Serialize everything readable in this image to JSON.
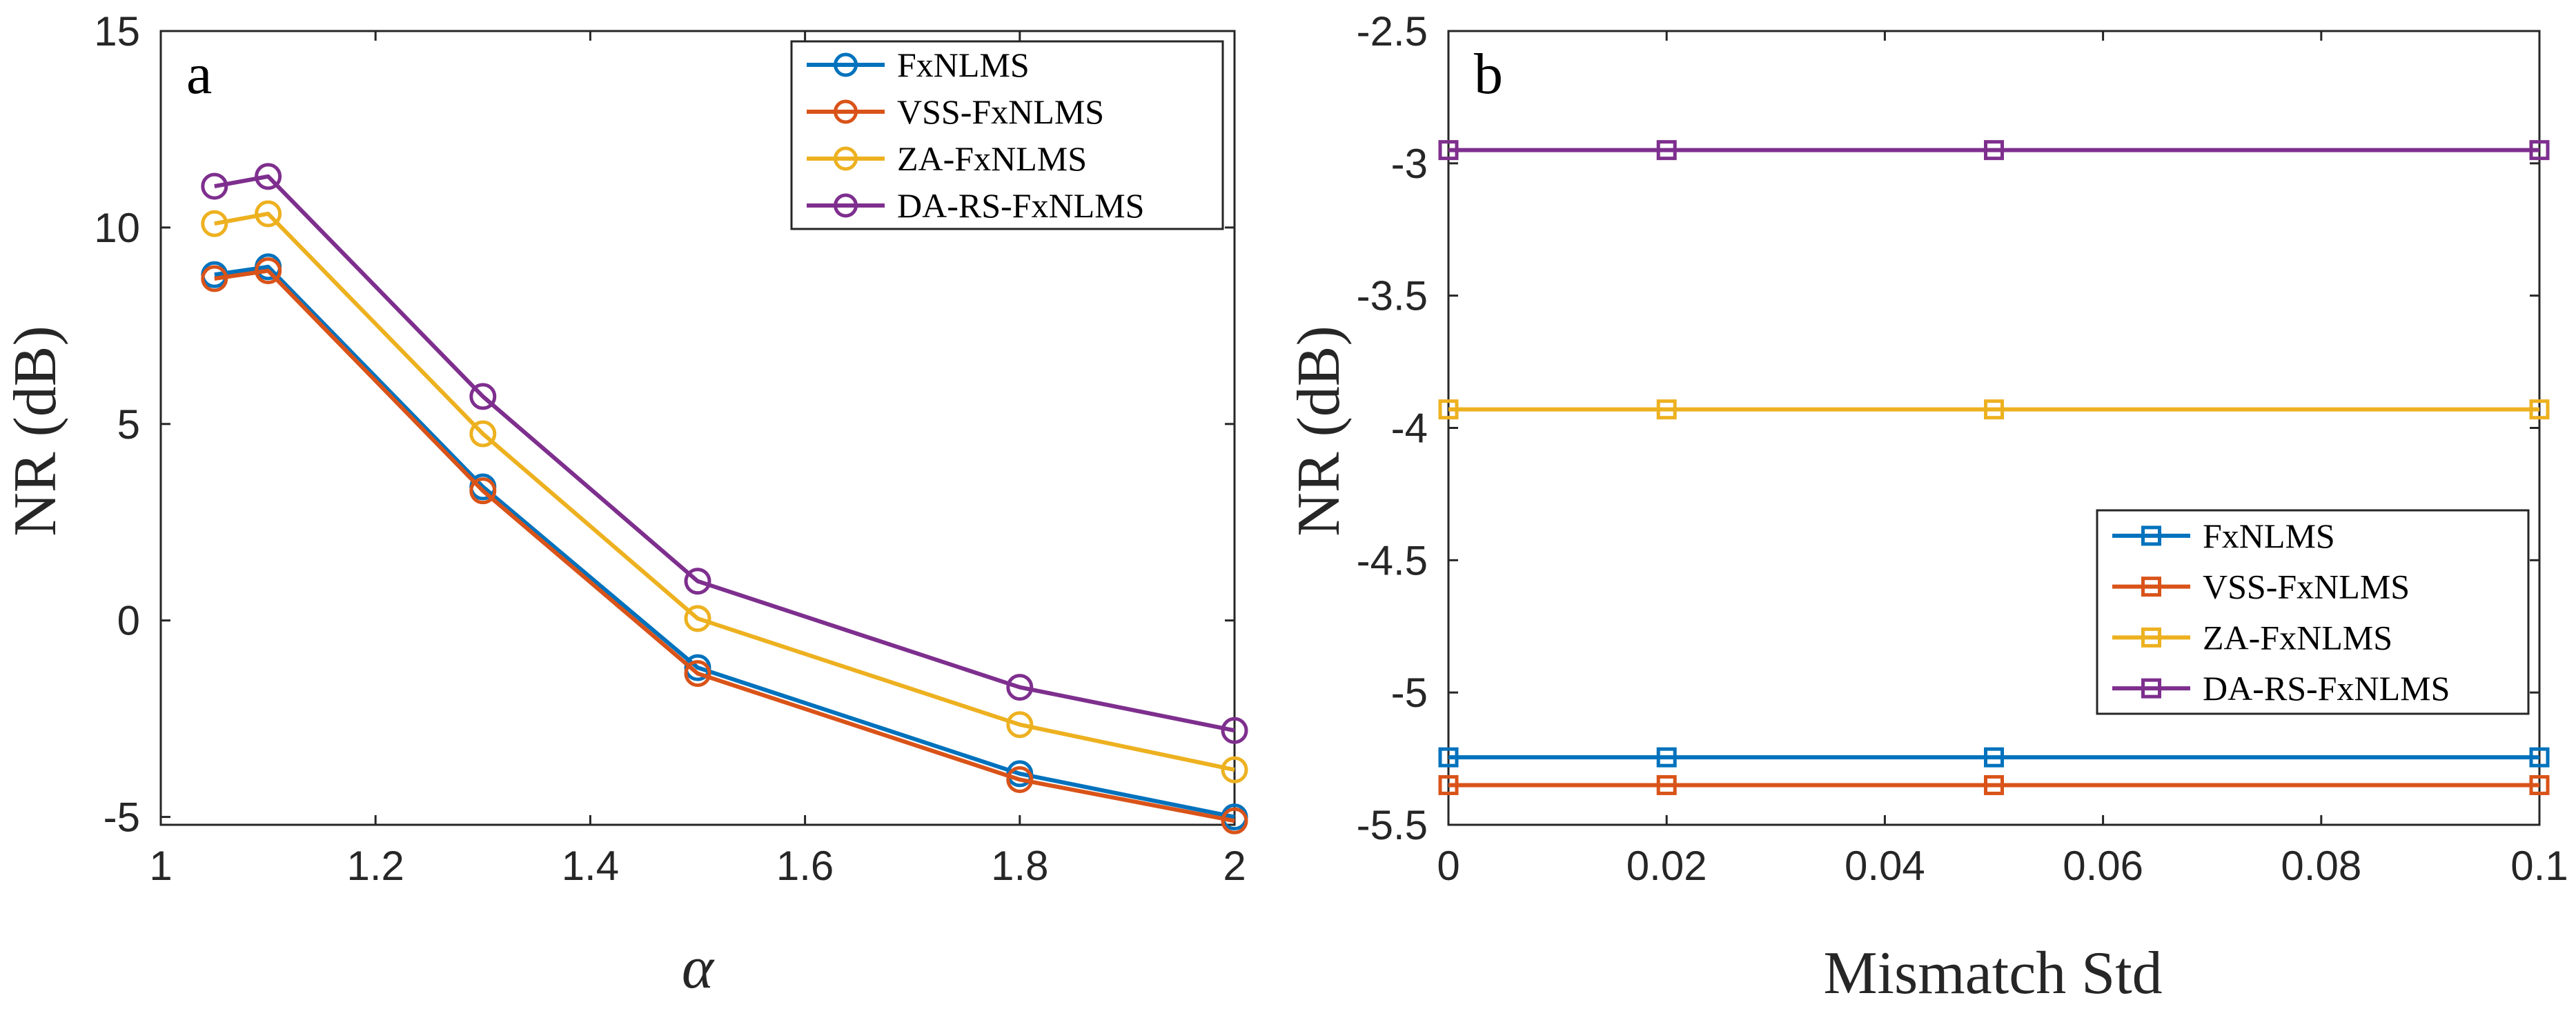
{
  "colors": {
    "FxNLMS": "#0072BD",
    "VSS-FxNLMS": "#D95319",
    "ZA-FxNLMS": "#EDB120",
    "DA-RS-FxNLMS": "#7E2F8E"
  },
  "chart_data": [
    {
      "panel": "a",
      "type": "line",
      "marker": "circle",
      "xlabel": "α",
      "ylabel": "NR (dB)",
      "xlim": [
        1,
        2
      ],
      "ylim": [
        -5.2,
        15
      ],
      "xticks": [
        1,
        1.2,
        1.4,
        1.6,
        1.8,
        2
      ],
      "xtick_labels": [
        "1",
        "1.2",
        "1.4",
        "1.6",
        "1.8",
        "2"
      ],
      "yticks": [
        -5,
        0,
        5,
        10,
        15
      ],
      "ytick_labels": [
        "-5",
        "0",
        "5",
        "10",
        "15"
      ],
      "legend_position": "top-right",
      "grid": false,
      "x": [
        1.05,
        1.1,
        1.3,
        1.5,
        1.8,
        2.0
      ],
      "series": [
        {
          "name": "FxNLMS",
          "values": [
            8.8,
            9.0,
            3.4,
            -1.2,
            -3.9,
            -5.0
          ]
        },
        {
          "name": "VSS-FxNLMS",
          "values": [
            8.7,
            8.9,
            3.3,
            -1.35,
            -4.05,
            -5.1
          ]
        },
        {
          "name": "ZA-FxNLMS",
          "values": [
            10.1,
            10.35,
            4.75,
            0.05,
            -2.65,
            -3.8
          ]
        },
        {
          "name": "DA-RS-FxNLMS",
          "values": [
            11.05,
            11.3,
            5.7,
            1.0,
            -1.7,
            -2.8
          ]
        }
      ]
    },
    {
      "panel": "b",
      "type": "line",
      "marker": "square",
      "xlabel": "Mismatch Std",
      "ylabel": "NR (dB)",
      "xlim": [
        0,
        0.1
      ],
      "ylim": [
        -5.5,
        -2.5
      ],
      "xticks": [
        0,
        0.02,
        0.04,
        0.06,
        0.08,
        0.1
      ],
      "xtick_labels": [
        "0",
        "0.02",
        "0.04",
        "0.06",
        "0.08",
        "0.1"
      ],
      "yticks": [
        -5.5,
        -5,
        -4.5,
        -4,
        -3.5,
        -3,
        -2.5
      ],
      "ytick_labels": [
        "-5.5",
        "-5",
        "-4.5",
        "-4",
        "-3.5",
        "-3",
        "-2.5"
      ],
      "legend_position": "lower-right",
      "grid": false,
      "x": [
        0,
        0.02,
        0.05,
        0.1
      ],
      "series": [
        {
          "name": "FxNLMS",
          "values": [
            -5.245,
            -5.245,
            -5.245,
            -5.245
          ]
        },
        {
          "name": "VSS-FxNLMS",
          "values": [
            -5.35,
            -5.35,
            -5.35,
            -5.35
          ]
        },
        {
          "name": "ZA-FxNLMS",
          "values": [
            -3.93,
            -3.93,
            -3.93,
            -3.93
          ]
        },
        {
          "name": "DA-RS-FxNLMS",
          "values": [
            -2.95,
            -2.95,
            -2.95,
            -2.95
          ]
        }
      ]
    }
  ]
}
